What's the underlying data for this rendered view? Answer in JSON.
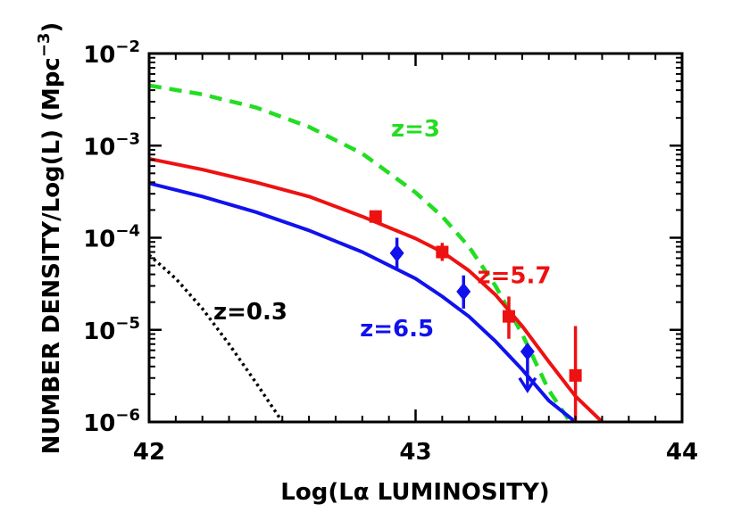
{
  "chart_data": {
    "type": "line",
    "xlabel": "Log(Lα LUMINOSITY)",
    "ylabel": "NUMBER DENSITY/Log(L) (Mpc",
    "ylabel_sup": "−3",
    "ylabel_close": ")",
    "xlim": [
      42,
      44
    ],
    "ylim": [
      1e-06,
      0.01
    ],
    "y_scale": "log",
    "grid": false,
    "x_ticks": [
      {
        "value": 42,
        "label": "42"
      },
      {
        "value": 43,
        "label": "43"
      },
      {
        "value": 44,
        "label": "44"
      }
    ],
    "y_ticks": [
      {
        "value": 1e-06,
        "base": "10",
        "exp": "−6"
      },
      {
        "value": 1e-05,
        "base": "10",
        "exp": "−5"
      },
      {
        "value": 0.0001,
        "base": "10",
        "exp": "−4"
      },
      {
        "value": 0.001,
        "base": "10",
        "exp": "−3"
      },
      {
        "value": 0.01,
        "base": "10",
        "exp": "−2"
      }
    ],
    "series": [
      {
        "name": "z=3",
        "color": "#22dd22",
        "style": "dashed",
        "x": [
          42.0,
          42.2,
          42.4,
          42.6,
          42.8,
          43.0,
          43.1,
          43.2,
          43.3,
          43.4,
          43.5,
          43.58
        ],
        "y": [
          0.0045,
          0.0036,
          0.0026,
          0.0016,
          0.00082,
          0.00031,
          0.00017,
          8e-05,
          3e-05,
          9e-06,
          2.2e-06,
          1e-06
        ]
      },
      {
        "name": "z=5.7",
        "color": "#ee1111",
        "style": "solid",
        "x": [
          42.0,
          42.2,
          42.4,
          42.6,
          42.8,
          43.0,
          43.1,
          43.2,
          43.3,
          43.4,
          43.5,
          43.6,
          43.7
        ],
        "y": [
          0.00072,
          0.00055,
          0.0004,
          0.00028,
          0.00017,
          9.8e-05,
          7e-05,
          4.4e-05,
          2.4e-05,
          1.1e-05,
          4.5e-06,
          1.9e-06,
          1e-06
        ]
      },
      {
        "name": "z=6.5",
        "color": "#1111ee",
        "style": "solid",
        "x": [
          42.0,
          42.2,
          42.4,
          42.6,
          42.8,
          43.0,
          43.1,
          43.2,
          43.3,
          43.4,
          43.5,
          43.6
        ],
        "y": [
          0.00039,
          0.00028,
          0.00019,
          0.00012,
          7e-05,
          3.6e-05,
          2.3e-05,
          1.4e-05,
          7.5e-06,
          3.7e-06,
          1.7e-06,
          1e-06
        ]
      },
      {
        "name": "z=0.3",
        "color": "#000000",
        "style": "dotted",
        "x": [
          42.0,
          42.1,
          42.2,
          42.3,
          42.4,
          42.5
        ],
        "y": [
          6.5e-05,
          3.6e-05,
          1.7e-05,
          7e-06,
          2.7e-06,
          1e-06
        ]
      }
    ],
    "points": [
      {
        "series": "z=5.7",
        "marker": "square",
        "color": "#ee1111",
        "x": 42.85,
        "y": 0.00017,
        "ylo": 0.000155,
        "yhi": 0.00019
      },
      {
        "series": "z=5.7",
        "marker": "square",
        "color": "#ee1111",
        "x": 43.1,
        "y": 7e-05,
        "ylo": 5.6e-05,
        "yhi": 8.8e-05
      },
      {
        "series": "z=5.7",
        "marker": "square",
        "color": "#ee1111",
        "x": 43.35,
        "y": 1.4e-05,
        "ylo": 8e-06,
        "yhi": 2.3e-05
      },
      {
        "series": "z=5.7",
        "marker": "square",
        "color": "#ee1111",
        "x": 43.6,
        "y": 3.2e-06,
        "ylo": 1e-06,
        "yhi": 1.1e-05
      },
      {
        "series": "z=6.5",
        "marker": "diamond",
        "color": "#1111ee",
        "x": 42.93,
        "y": 6.8e-05,
        "ylo": 4.5e-05,
        "yhi": 0.0001
      },
      {
        "series": "z=6.5",
        "marker": "diamond",
        "color": "#1111ee",
        "x": 43.18,
        "y": 2.6e-05,
        "ylo": 1.7e-05,
        "yhi": 3.9e-05
      },
      {
        "series": "z=6.5",
        "marker": "diamond",
        "color": "#1111ee",
        "x": 43.42,
        "y": 5.8e-06,
        "upper_limit": true,
        "ylo": 2.2e-06
      }
    ],
    "annotations": [
      {
        "text": "z=3",
        "color": "#22dd22",
        "x": 43.0,
        "y": 0.00125
      },
      {
        "text": "z=5.7",
        "color": "#ee1111",
        "x": 43.37,
        "y": 3.2e-05
      },
      {
        "text": "z=6.5",
        "color": "#1111ee",
        "x": 42.93,
        "y": 8.5e-06
      },
      {
        "text": "z=0.3",
        "color": "#000000",
        "x": 42.38,
        "y": 1.3e-05
      }
    ]
  }
}
